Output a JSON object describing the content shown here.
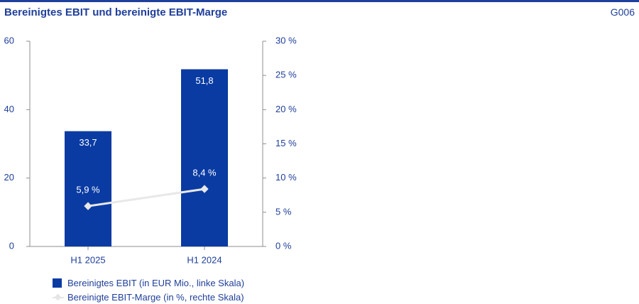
{
  "header": {
    "title": "Bereinigtes EBIT und bereinigte EBIT-Marge",
    "code": "G006"
  },
  "colors": {
    "bar": "#0a3ba3",
    "line": "#e8e8e8",
    "text": "#1f3f9a",
    "axis": "#8f8f8f"
  },
  "chart_data": {
    "type": "bar",
    "title": "Bereinigtes EBIT und bereinigte EBIT-Marge",
    "categories": [
      "H1 2025",
      "H1 2024"
    ],
    "series": [
      {
        "name": "Bereinigtes EBIT (in EUR Mio., linke Skala)",
        "type": "bar",
        "axis": "left",
        "values": [
          33.7,
          51.8
        ],
        "labels": [
          "33,7",
          "51,8"
        ]
      },
      {
        "name": "Bereinigte EBIT-Marge (in %, rechte Skala)",
        "type": "line",
        "axis": "right",
        "values": [
          5.9,
          8.4
        ],
        "labels": [
          "5,9 %",
          "8,4 %"
        ]
      }
    ],
    "y_left": {
      "ylim": [
        0,
        60
      ],
      "ticks": [
        "0",
        "20",
        "40",
        "60"
      ]
    },
    "y_right": {
      "ylim": [
        0,
        30
      ],
      "ticks": [
        "0 %",
        "5 %",
        "10 %",
        "15 %",
        "20 %",
        "25 %",
        "30 %"
      ]
    },
    "grid": false,
    "legend_position": "bottom-left"
  }
}
